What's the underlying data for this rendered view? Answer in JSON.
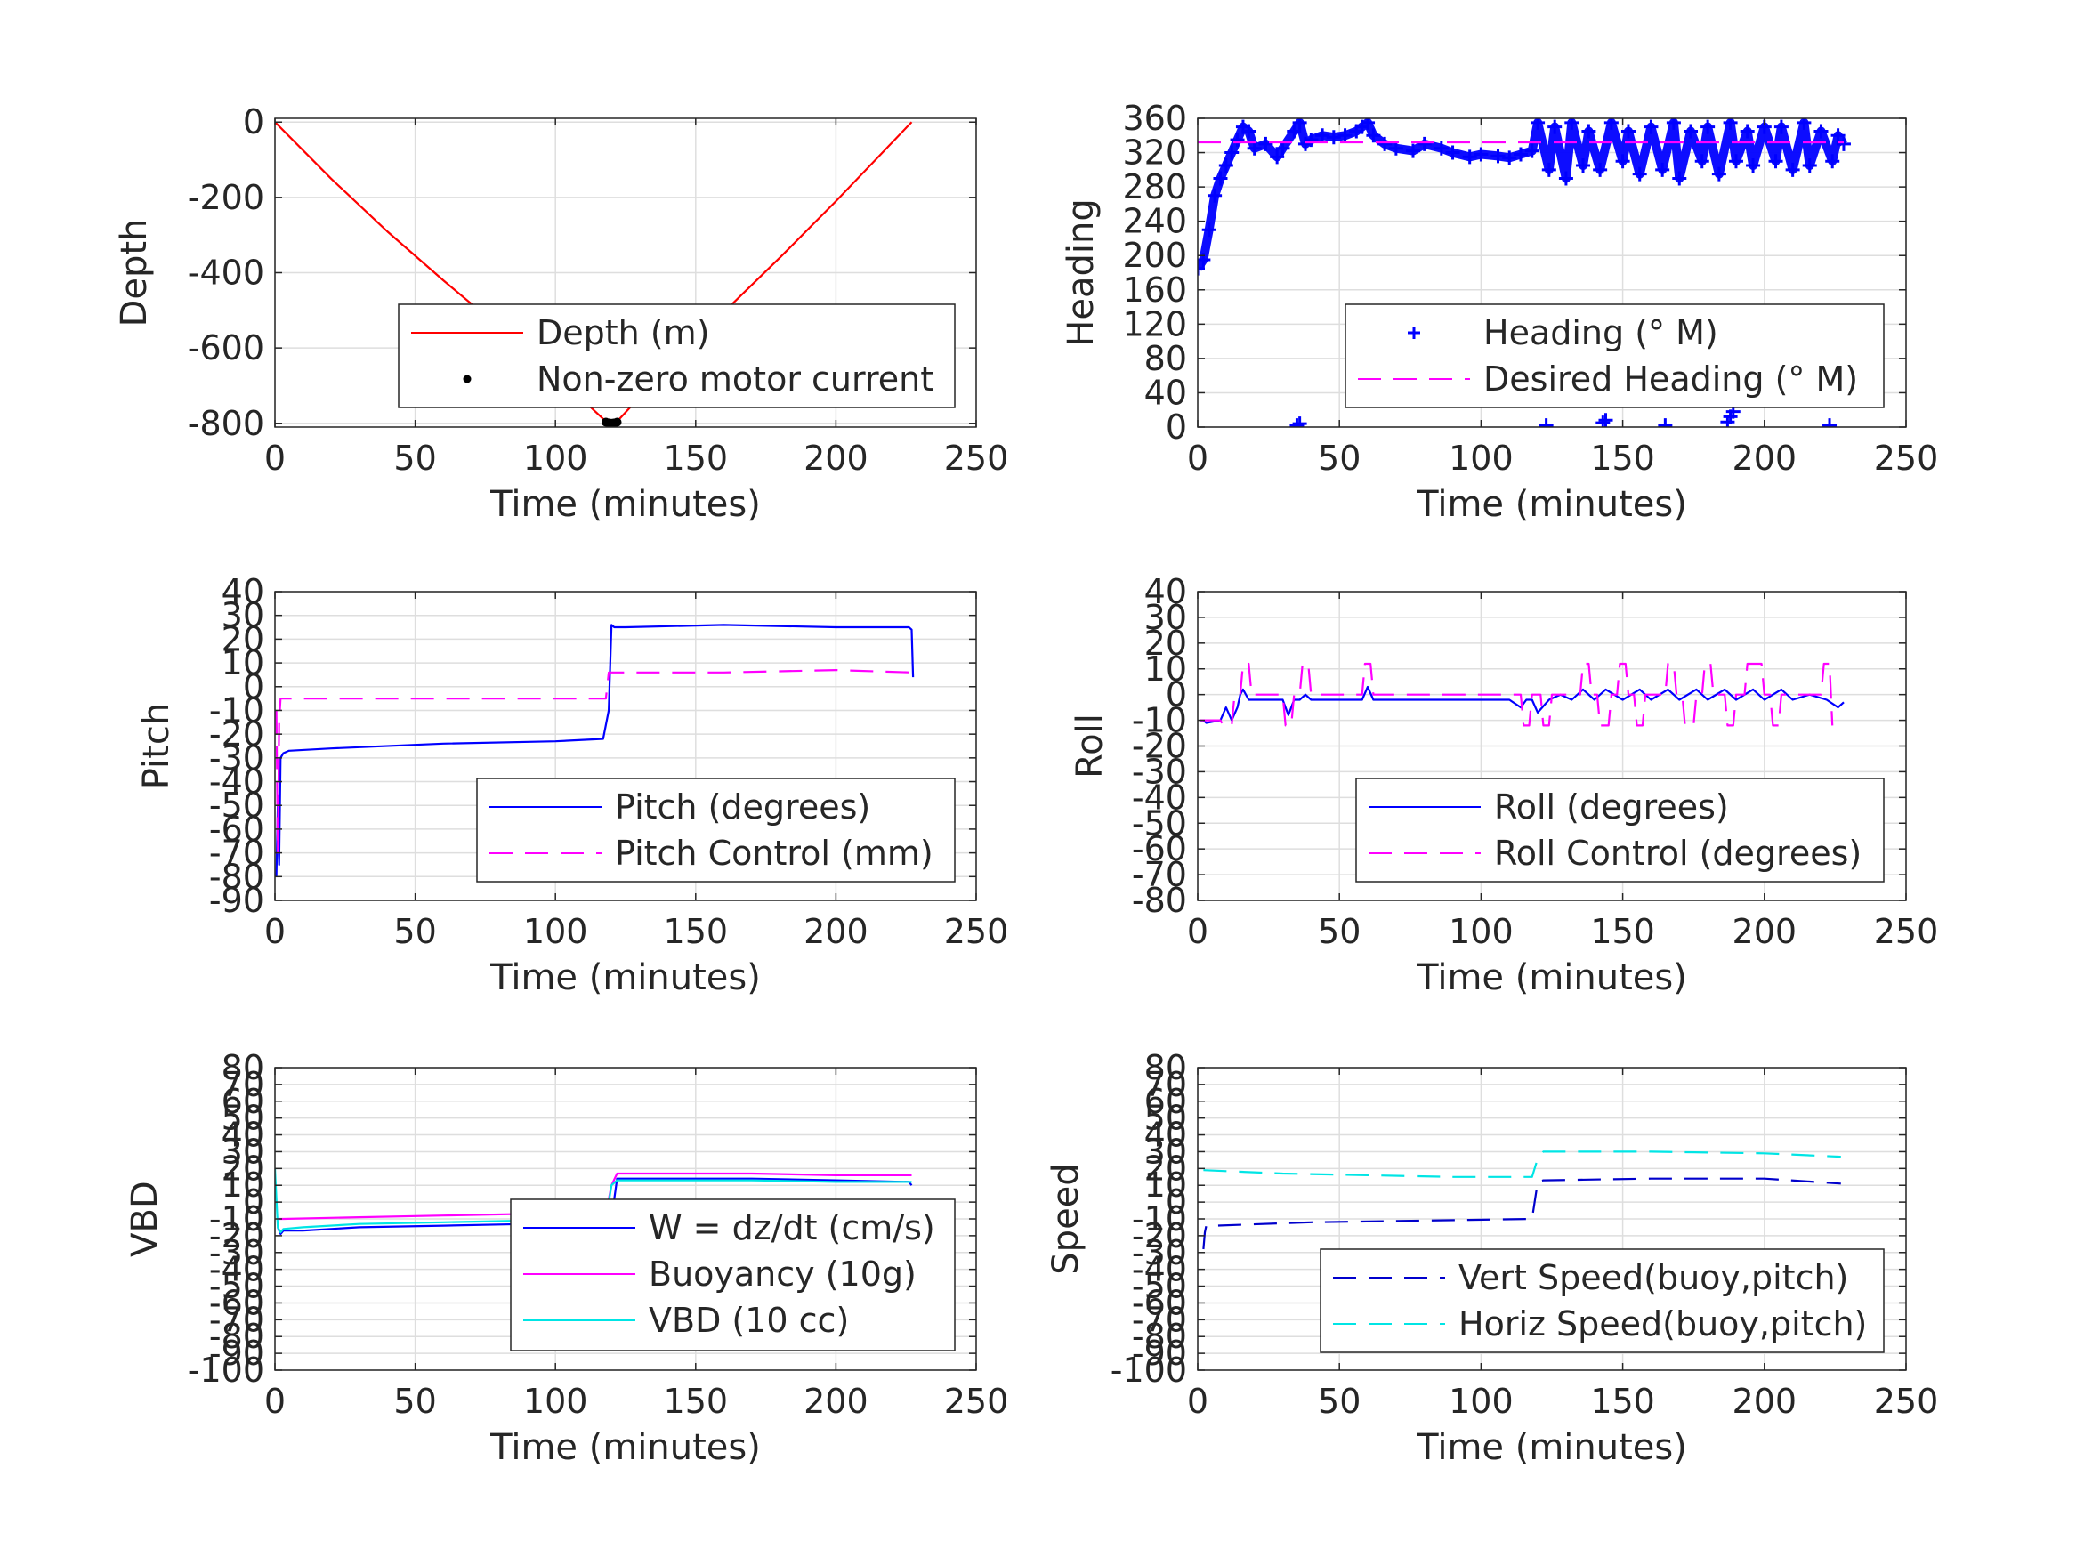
{
  "chart_data": [
    {
      "id": "depth",
      "type": "line",
      "title": "",
      "xlabel": "Time (minutes)",
      "ylabel": "Depth",
      "xlim": [
        0,
        250
      ],
      "ylim": [
        -810,
        10
      ],
      "xticks": [
        0,
        50,
        100,
        150,
        200,
        250
      ],
      "yticks": [
        0,
        -200,
        -400,
        -600,
        -800
      ],
      "grid": true,
      "legend": "bottom-right",
      "series": [
        {
          "name": "Depth (m)",
          "style": "solid",
          "color": "#ff0000",
          "marker": "none",
          "x": [
            0,
            20,
            40,
            60,
            80,
            100,
            118,
            120,
            122,
            140,
            160,
            180,
            200,
            227
          ],
          "y": [
            0,
            -150,
            -290,
            -420,
            -545,
            -670,
            -795,
            -800,
            -795,
            -650,
            -505,
            -360,
            -210,
            0
          ]
        },
        {
          "name": "Non-zero motor current",
          "style": "none",
          "color": "#000000",
          "marker": "dot",
          "x": [
            118,
            119,
            119.5,
            120,
            120.5,
            121,
            122
          ],
          "y": [
            -797,
            -799,
            -800,
            -800,
            -800,
            -799,
            -797
          ]
        }
      ]
    },
    {
      "id": "heading",
      "type": "line",
      "title": "",
      "xlabel": "Time (minutes)",
      "ylabel": "Heading",
      "xlim": [
        0,
        250
      ],
      "ylim": [
        0,
        360
      ],
      "xticks": [
        0,
        50,
        100,
        150,
        200,
        250
      ],
      "yticks": [
        0,
        40,
        80,
        120,
        160,
        200,
        240,
        280,
        320,
        360
      ],
      "grid": true,
      "legend": "bottom-right",
      "series": [
        {
          "name": "Heading (° M)",
          "style": "none",
          "color": "#0000ff",
          "marker": "plus",
          "x": [
            0,
            2,
            4,
            6,
            8,
            10,
            12,
            14,
            16,
            18,
            20,
            24,
            28,
            30,
            34,
            36,
            38,
            40,
            44,
            48,
            52,
            56,
            58,
            60,
            62,
            66,
            70,
            76,
            80,
            86,
            90,
            96,
            100,
            106,
            110,
            114,
            118,
            120,
            124,
            126,
            130,
            132,
            136,
            138,
            142,
            146,
            150,
            152,
            156,
            160,
            164,
            168,
            170,
            174,
            178,
            180,
            184,
            188,
            190,
            194,
            196,
            200,
            204,
            206,
            210,
            214,
            216,
            220,
            224,
            226,
            228,
            35,
            36,
            123,
            143,
            144,
            165,
            187,
            188,
            189,
            223
          ],
          "y": [
            185,
            195,
            230,
            270,
            290,
            305,
            320,
            335,
            350,
            345,
            325,
            330,
            315,
            325,
            345,
            355,
            330,
            335,
            340,
            338,
            340,
            345,
            350,
            355,
            340,
            330,
            325,
            322,
            330,
            325,
            320,
            315,
            318,
            316,
            314,
            318,
            322,
            355,
            300,
            350,
            290,
            355,
            305,
            345,
            300,
            355,
            310,
            345,
            295,
            350,
            300,
            355,
            290,
            345,
            310,
            350,
            295,
            355,
            310,
            345,
            305,
            350,
            310,
            350,
            300,
            355,
            305,
            345,
            310,
            340,
            330,
            2,
            4,
            2,
            5,
            8,
            2,
            6,
            12,
            18,
            2
          ]
        },
        {
          "name": "Desired Heading (° M)",
          "style": "dashed",
          "color": "#ff00ff",
          "marker": "none",
          "x": [
            0,
            228
          ],
          "y": [
            332,
            332
          ]
        }
      ]
    },
    {
      "id": "pitch",
      "type": "line",
      "title": "",
      "xlabel": "Time (minutes)",
      "ylabel": "Pitch",
      "xlim": [
        0,
        250
      ],
      "ylim": [
        -90,
        40
      ],
      "xticks": [
        0,
        50,
        100,
        150,
        200,
        250
      ],
      "yticks": [
        40,
        30,
        20,
        10,
        0,
        -10,
        -20,
        -30,
        -40,
        -50,
        -60,
        -70,
        -80,
        -90
      ],
      "grid": true,
      "legend": "bottom-right",
      "series": [
        {
          "name": "Pitch (degrees)",
          "style": "solid",
          "color": "#0000ff",
          "marker": "none",
          "x": [
            0.5,
            1,
            1.5,
            2,
            3,
            5,
            20,
            60,
            100,
            117,
            119,
            120,
            121,
            125,
            160,
            200,
            226,
            227,
            227.5
          ],
          "y": [
            -80,
            -50,
            -75,
            -30,
            -28,
            -27,
            -26,
            -24,
            -23,
            -22,
            -10,
            26,
            25,
            25,
            26,
            25,
            25,
            24,
            4
          ]
        },
        {
          "name": "Pitch Control (mm)",
          "style": "dashed",
          "color": "#ff00ff",
          "marker": "none",
          "x": [
            0.5,
            1,
            1.5,
            2,
            3,
            60,
            118,
            119,
            121,
            160,
            200,
            227
          ],
          "y": [
            -10,
            -70,
            -15,
            -5,
            -5,
            -5,
            -5,
            6,
            6,
            6,
            7,
            6
          ]
        }
      ]
    },
    {
      "id": "roll",
      "type": "line",
      "title": "",
      "xlabel": "Time (minutes)",
      "ylabel": "Roll",
      "xlim": [
        0,
        250
      ],
      "ylim": [
        -80,
        40
      ],
      "xticks": [
        0,
        50,
        100,
        150,
        200,
        250
      ],
      "yticks": [
        40,
        30,
        20,
        10,
        0,
        -10,
        -20,
        -30,
        -40,
        -50,
        -60,
        -70,
        -80
      ],
      "grid": true,
      "legend": "bottom-right",
      "series": [
        {
          "name": "Roll (degrees)",
          "style": "solid",
          "color": "#0000ff",
          "marker": "none",
          "x": [
            1,
            2,
            3,
            8,
            10,
            12,
            14,
            15,
            16,
            18,
            30,
            32,
            34,
            36,
            38,
            40,
            58,
            60,
            62,
            64,
            110,
            114,
            116,
            118,
            120,
            124,
            128,
            132,
            136,
            140,
            144,
            150,
            156,
            160,
            166,
            170,
            176,
            180,
            186,
            190,
            196,
            200,
            206,
            210,
            216,
            222,
            226,
            228
          ],
          "y": [
            -10,
            -10,
            -11,
            -10,
            -5,
            -10,
            -5,
            0,
            2,
            -2,
            -2,
            -8,
            -2,
            -2,
            0,
            -2,
            -2,
            3,
            -2,
            -2,
            -2,
            -5,
            -2,
            -2,
            -7,
            -2,
            0,
            -2,
            2,
            -2,
            2,
            -2,
            2,
            -2,
            2,
            -2,
            2,
            -2,
            2,
            -2,
            2,
            -2,
            2,
            -2,
            0,
            -2,
            -5,
            -3
          ]
        },
        {
          "name": "Roll Control (degrees)",
          "style": "dashed",
          "color": "#ff00ff",
          "marker": "none",
          "x": [
            1,
            2,
            8,
            9,
            12,
            13,
            15,
            16,
            18,
            19,
            30,
            31,
            33,
            34,
            36,
            37,
            39,
            40,
            58,
            59,
            61,
            62,
            110,
            114,
            115,
            117,
            118,
            121,
            122,
            124,
            125,
            135,
            136,
            138,
            139,
            141,
            142,
            145,
            146,
            148,
            149,
            151,
            152,
            154,
            155,
            157,
            158,
            165,
            166,
            168,
            169,
            171,
            172,
            175,
            176,
            178,
            179,
            181,
            182,
            186,
            187,
            189,
            190,
            193,
            194,
            199,
            200,
            202,
            203,
            205,
            206,
            220,
            221,
            223,
            224
          ],
          "y": [
            -10,
            -10,
            -10,
            -12,
            -12,
            0,
            0,
            12,
            12,
            0,
            0,
            -12,
            -12,
            0,
            0,
            12,
            12,
            0,
            0,
            12,
            12,
            0,
            0,
            0,
            -12,
            -12,
            0,
            0,
            -12,
            -12,
            0,
            0,
            12,
            12,
            0,
            0,
            -12,
            -12,
            0,
            0,
            12,
            12,
            0,
            0,
            -12,
            -12,
            0,
            0,
            12,
            12,
            0,
            0,
            -12,
            -12,
            0,
            0,
            12,
            12,
            0,
            0,
            -12,
            -12,
            0,
            0,
            12,
            12,
            0,
            0,
            -12,
            -12,
            0,
            0,
            12,
            12,
            -12
          ]
        }
      ]
    },
    {
      "id": "vbd",
      "type": "line",
      "title": "",
      "xlabel": "Time (minutes)",
      "ylabel": "VBD",
      "xlim": [
        0,
        250
      ],
      "ylim": [
        -100,
        80
      ],
      "xticks": [
        0,
        50,
        100,
        150,
        200,
        250
      ],
      "yticks": [
        80,
        70,
        60,
        50,
        40,
        30,
        20,
        10,
        0,
        -10,
        -20,
        -30,
        -40,
        -50,
        -60,
        -70,
        -80,
        -90,
        -100
      ],
      "grid": true,
      "legend": "bottom-right",
      "series": [
        {
          "name": "W = dz/dt (cm/s)",
          "style": "solid",
          "color": "#0000ff",
          "marker": "none",
          "x": [
            1,
            2,
            3,
            10,
            30,
            60,
            90,
            118,
            120,
            122,
            140,
            170,
            200,
            226,
            227
          ],
          "y": [
            -15,
            -19,
            -17,
            -17,
            -15,
            -14,
            -13,
            -12,
            -10,
            14,
            14,
            14,
            13,
            12,
            10
          ]
        },
        {
          "name": "Buoyancy (10g)",
          "style": "solid",
          "color": "#ff00ff",
          "marker": "none",
          "x": [
            1,
            2,
            3,
            30,
            60,
            90,
            118,
            120,
            122,
            140,
            170,
            200,
            227
          ],
          "y": [
            -10,
            -10,
            -10,
            -9,
            -8,
            -7,
            -7,
            10,
            17,
            17,
            17,
            16,
            16
          ]
        },
        {
          "name": "VBD (10 cc)",
          "style": "solid",
          "color": "#00e5e5",
          "marker": "none",
          "x": [
            0,
            1,
            2,
            3,
            10,
            30,
            60,
            90,
            118,
            120,
            122,
            140,
            170,
            200,
            227
          ],
          "y": [
            20,
            -15,
            -18,
            -16,
            -15,
            -13,
            -12,
            -11,
            -11,
            10,
            13,
            13,
            13,
            12,
            12
          ]
        }
      ]
    },
    {
      "id": "speed",
      "type": "line",
      "title": "",
      "xlabel": "Time (minutes)",
      "ylabel": "Speed",
      "xlim": [
        0,
        250
      ],
      "ylim": [
        -100,
        80
      ],
      "xticks": [
        0,
        50,
        100,
        150,
        200,
        250
      ],
      "yticks": [
        80,
        70,
        60,
        50,
        40,
        30,
        20,
        10,
        0,
        -10,
        -20,
        -30,
        -40,
        -50,
        -60,
        -70,
        -80,
        -90,
        -100
      ],
      "grid": true,
      "legend": "bottom-right",
      "series": [
        {
          "name": "Vert Speed(buoy,pitch)",
          "style": "dashed",
          "color": "#0000cc",
          "marker": "none",
          "x": [
            2,
            2.5,
            3,
            6,
            40,
            80,
            118,
            120,
            122,
            160,
            200,
            227
          ],
          "y": [
            -28,
            -18,
            -14,
            -14,
            -12,
            -11,
            -10,
            12,
            13,
            14,
            14,
            11
          ]
        },
        {
          "name": "Horiz Speed(buoy,pitch)",
          "style": "dashed",
          "color": "#00e5e5",
          "marker": "none",
          "x": [
            2,
            30,
            60,
            90,
            118,
            120,
            122,
            160,
            200,
            227
          ],
          "y": [
            19,
            17,
            16,
            15,
            15,
            26,
            30,
            30,
            29,
            27
          ]
        }
      ]
    }
  ]
}
